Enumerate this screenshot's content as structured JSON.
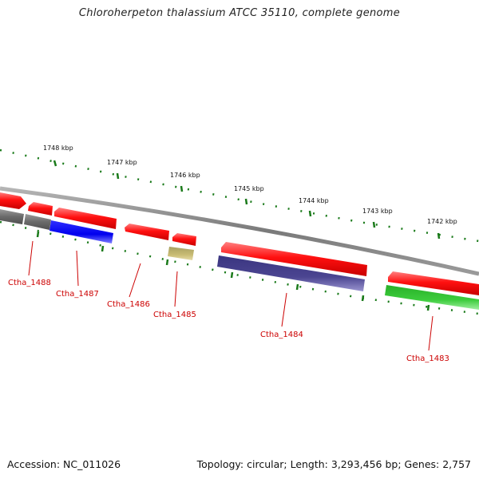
{
  "title": "Chloroherpeton thalassium ATCC 35110, complete genome",
  "footer": {
    "accession": "Accession: NC_011026",
    "summary": "Topology: circular; Length: 3,293,456 bp; Genes: 2,757"
  },
  "colors": {
    "backbone": "#8a8a8a",
    "forward_gene": "#ff1a1a",
    "tick": "#1a7a1a",
    "label": "#cc0000",
    "gray_gene": "#6e6e6e",
    "blue_gene": "#1010ee",
    "olive_gene": "#bfb16a",
    "purple_gene": "#4b4591",
    "green_gene": "#3ccc3c"
  },
  "axis_labels": [
    "1748 kbp",
    "1747 kbp",
    "1746 kbp",
    "1745 kbp",
    "1744 kbp",
    "1743 kbp",
    "1742 kbp"
  ],
  "genes": [
    {
      "label": "Ctha_1488",
      "strand": "reverse",
      "color": "#6e6e6e"
    },
    {
      "label": "Ctha_1487",
      "strand": "reverse",
      "color": "#1010ee"
    },
    {
      "label": "Ctha_1486",
      "strand": "forward",
      "color": "#ff1a1a"
    },
    {
      "label": "Ctha_1485",
      "strand": "reverse",
      "color": "#bfb16a"
    },
    {
      "label": "Ctha_1484",
      "strand": "reverse",
      "color": "#4b4591"
    },
    {
      "label": "Ctha_1483",
      "strand": "reverse",
      "color": "#3ccc3c"
    }
  ]
}
